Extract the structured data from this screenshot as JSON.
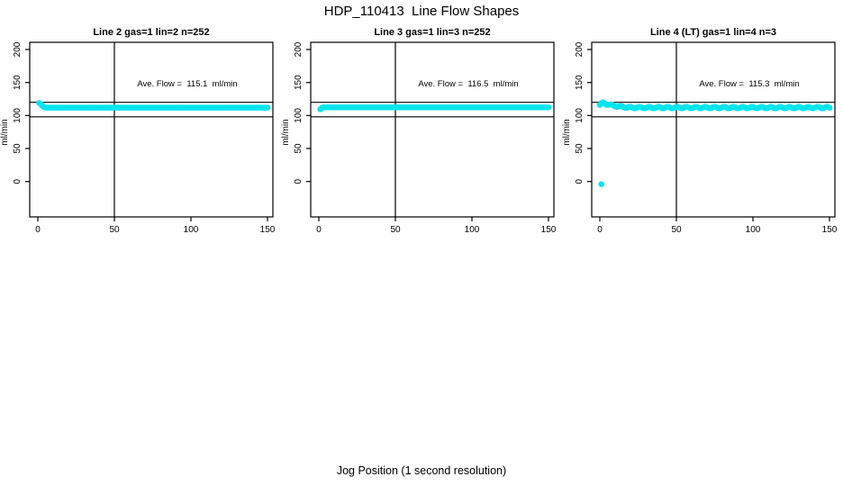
{
  "page_title": "HDP_110413  Line Flow Shapes",
  "chart_data": {
    "type": "scatter",
    "title": "HDP_110413  Line Flow Shapes",
    "xlabel": "Jog Position (1 second resolution)",
    "ylabel": "ml/min",
    "x_ticks": [
      0,
      50,
      100,
      150
    ],
    "y_ticks": [
      0,
      50,
      100,
      150,
      200
    ],
    "xlim": [
      -6,
      156
    ],
    "ylim_display": [
      -53,
      211
    ],
    "vline_x": 50,
    "ref_lines_y": [
      120,
      98
    ],
    "marker_color": "#00E5EE",
    "line_color": "#000000",
    "grid": false,
    "legend": "none",
    "panels": [
      {
        "title": "Line 2 gas=1 lin=2 n=252",
        "gas": 1,
        "lin": 2,
        "n": 252,
        "ave_flow": 115.1,
        "ave_flow_label": "Ave. Flow =  115.1  ml/min",
        "flat_value": 112,
        "x_start": 1,
        "x_end": 150,
        "start_points": [
          [
            1,
            119
          ],
          [
            2,
            117
          ],
          [
            3,
            114.5
          ],
          [
            4,
            113
          ]
        ],
        "outliers": [],
        "jitter": 0
      },
      {
        "title": "Line 3 gas=1 lin=3 n=252",
        "gas": 1,
        "lin": 3,
        "n": 252,
        "ave_flow": 116.5,
        "ave_flow_label": "Ave. Flow =  116.5  ml/min",
        "flat_value": 112.5,
        "x_start": 1,
        "x_end": 150,
        "start_points": [
          [
            1,
            109.5
          ],
          [
            2,
            111.5
          ]
        ],
        "outliers": [],
        "jitter": 0
      },
      {
        "title": "Line 4 (LT) gas=1 lin=4 n=3",
        "gas": 1,
        "lin": 4,
        "n": 3,
        "ave_flow": 115.3,
        "ave_flow_label": "Ave. Flow =  115.3  ml/min",
        "flat_value": 112,
        "x_start": 0,
        "x_end": 150,
        "start_points": [
          [
            0,
            116
          ],
          [
            1,
            118
          ],
          [
            2,
            119
          ],
          [
            3,
            118.5
          ],
          [
            4,
            117.5
          ],
          [
            5,
            117
          ],
          [
            6,
            116.5
          ],
          [
            7,
            116
          ],
          [
            8,
            115.5
          ],
          [
            9,
            115
          ],
          [
            10,
            114.5
          ],
          [
            11,
            114
          ],
          [
            12,
            113.8
          ],
          [
            13,
            113.5
          ],
          [
            14,
            113.2
          ],
          [
            15,
            113
          ],
          [
            16,
            112.8
          ],
          [
            17,
            112.6
          ],
          [
            18,
            112.4
          ],
          [
            19,
            112.2
          ]
        ],
        "outliers": [
          [
            1,
            -4
          ]
        ],
        "jitter": 1.1
      }
    ]
  }
}
